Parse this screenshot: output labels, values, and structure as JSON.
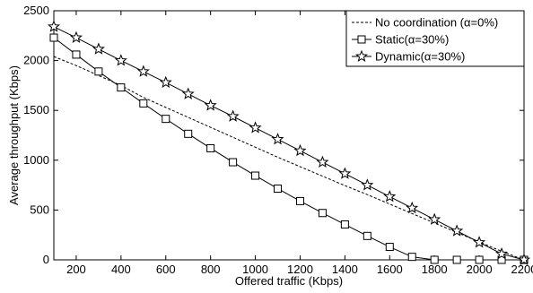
{
  "chart_data": {
    "type": "line",
    "xlabel": "Offered traffic (Kbps)",
    "ylabel": "Average throughput (Kbps)",
    "xlim": [
      100,
      2200
    ],
    "ylim": [
      0,
      2500
    ],
    "xticks": [
      200,
      400,
      600,
      800,
      1000,
      1200,
      1400,
      1600,
      1800,
      2000,
      2200
    ],
    "yticks": [
      0,
      500,
      1000,
      1500,
      2000,
      2500
    ],
    "grid": false,
    "legend_position": "top-right",
    "series": [
      {
        "name": "No coordination (α=0%)",
        "style": "dashed",
        "marker": "none",
        "x": [
          100,
          200,
          300,
          400,
          500,
          600,
          700,
          800,
          900,
          1000,
          1100,
          1200,
          1300,
          1400,
          1500,
          1600,
          1700,
          1800,
          1900,
          2000,
          2100,
          2200
        ],
        "y": [
          2040,
          1950,
          1850,
          1750,
          1630,
          1530,
          1430,
          1330,
          1230,
          1130,
          1030,
          935,
          840,
          745,
          655,
          560,
          465,
          370,
          275,
          180,
          85,
          0
        ]
      },
      {
        "name": "Static(α=30%)",
        "style": "solid",
        "marker": "square",
        "x": [
          100,
          200,
          300,
          400,
          500,
          600,
          700,
          800,
          900,
          1000,
          1100,
          1200,
          1300,
          1400,
          1500,
          1600,
          1700,
          1800,
          1900,
          2000,
          2100,
          2200
        ],
        "y": [
          2230,
          2060,
          1890,
          1730,
          1570,
          1415,
          1265,
          1120,
          980,
          845,
          715,
          590,
          470,
          355,
          240,
          130,
          30,
          0,
          0,
          0,
          0,
          0
        ]
      },
      {
        "name": "Dynamic(α=30%)",
        "style": "solid",
        "marker": "star",
        "x": [
          100,
          200,
          300,
          400,
          500,
          600,
          700,
          800,
          900,
          1000,
          1100,
          1200,
          1300,
          1400,
          1500,
          1600,
          1700,
          1800,
          1900,
          2000,
          2100,
          2200
        ],
        "y": [
          2340,
          2230,
          2115,
          2000,
          1890,
          1780,
          1665,
          1550,
          1440,
          1325,
          1210,
          1095,
          980,
          865,
          750,
          635,
          520,
          405,
          290,
          175,
          60,
          0
        ]
      }
    ]
  }
}
